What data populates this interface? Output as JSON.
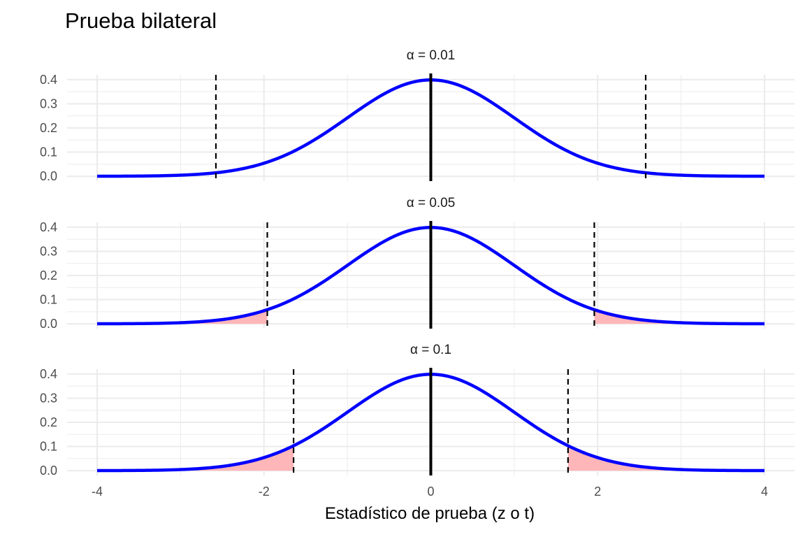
{
  "chart_data": {
    "type": "area",
    "title": "Prueba bilateral",
    "xlabel": "Estadístico de prueba (z o t)",
    "ylabel": "",
    "xlim": [
      -4,
      4
    ],
    "ylim": [
      0,
      0.4
    ],
    "x_ticks": [
      "-4",
      "-2",
      "0",
      "2",
      "4"
    ],
    "y_ticks": [
      "0.0",
      "0.1",
      "0.2",
      "0.3",
      "0.4"
    ],
    "grid": true,
    "legend": "none",
    "colors": {
      "curve": "#0000ff",
      "rejection_fill": "#ffb6b9",
      "critical_line": "#000000",
      "center_line": "#000000",
      "grid": "#ebebeb"
    },
    "series": [
      {
        "name": "α = 0.01",
        "alpha": 0.01,
        "critical_values": [
          -2.576,
          2.576
        ],
        "x": [
          -4,
          -3.5,
          -3,
          -2.576,
          -2.5,
          -2,
          -1.645,
          -1.5,
          -1,
          -0.5,
          0,
          0.5,
          1,
          1.5,
          1.645,
          2,
          2.5,
          2.576,
          3,
          3.5,
          4
        ],
        "y": [
          0.0001,
          0.0009,
          0.0044,
          0.0145,
          0.0175,
          0.054,
          0.1031,
          0.1295,
          0.242,
          0.3521,
          0.3989,
          0.3521,
          0.242,
          0.1295,
          0.1031,
          0.054,
          0.0175,
          0.0145,
          0.0044,
          0.0009,
          0.0001
        ]
      },
      {
        "name": "α = 0.05",
        "alpha": 0.05,
        "critical_values": [
          -1.96,
          1.96
        ],
        "x": [
          -4,
          -3.5,
          -3,
          -2.5,
          -1.96,
          -1.5,
          -1,
          -0.5,
          0,
          0.5,
          1,
          1.5,
          1.96,
          2.5,
          3,
          3.5,
          4
        ],
        "y": [
          0.0001,
          0.0009,
          0.0044,
          0.0175,
          0.0584,
          0.1295,
          0.242,
          0.3521,
          0.3989,
          0.3521,
          0.242,
          0.1295,
          0.0584,
          0.0175,
          0.0044,
          0.0009,
          0.0001
        ]
      },
      {
        "name": "α = 0.1",
        "alpha": 0.1,
        "critical_values": [
          -1.645,
          1.645
        ],
        "x": [
          -4,
          -3.5,
          -3,
          -2.5,
          -2,
          -1.645,
          -1,
          -0.5,
          0,
          0.5,
          1,
          1.645,
          2,
          2.5,
          3,
          3.5,
          4
        ],
        "y": [
          0.0001,
          0.0009,
          0.0044,
          0.0175,
          0.054,
          0.1031,
          0.242,
          0.3521,
          0.3989,
          0.3521,
          0.242,
          0.1031,
          0.054,
          0.0175,
          0.0044,
          0.0009,
          0.0001
        ]
      }
    ]
  }
}
